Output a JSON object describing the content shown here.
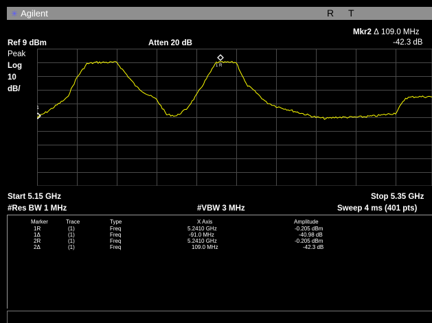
{
  "title": {
    "brand": "Agilent",
    "r": "R",
    "t": "T"
  },
  "marker_readout": {
    "label": "Mkr2",
    "delta_symbol": "Δ",
    "freq": "109.0 MHz",
    "amp": "-42.3 dB"
  },
  "header": {
    "ref": "Ref 9 dBm",
    "atten": "Atten 20 dB"
  },
  "scale": {
    "detector": "Peak",
    "mode": "Log",
    "value": "10",
    "unit": "dB/"
  },
  "footer": {
    "start": "Start 5.15 GHz",
    "stop": "Stop 5.35 GHz",
    "res_bw": "#Res BW 1 MHz",
    "vbw": "#VBW 3 MHz",
    "sweep": "Sweep 4 ms (401 pts)"
  },
  "marker_table": {
    "headers": [
      "Marker",
      "Trace",
      "Type",
      "X Axis",
      "Amplitude"
    ],
    "rows": [
      [
        "1R",
        "(1)",
        "Freq",
        "5.2410 GHz",
        "-0.205 dBm"
      ],
      [
        "1Δ",
        "(1)",
        "Freq",
        "-91.0 MHz",
        "-40.98 dB"
      ],
      [
        "2R",
        "(1)",
        "Freq",
        "5.2410 GHz",
        "-0.205 dBm"
      ],
      [
        "2Δ",
        "(1)",
        "Freq",
        "109.0 MHz",
        "-42.3 dB"
      ]
    ]
  },
  "markers_on_plot": {
    "m1": "1",
    "m2": "1 R"
  },
  "colors": {
    "trace": "#ffff00",
    "grid": "#4a4a4a",
    "background": "#000000",
    "titlebar": "#8f8f8f"
  },
  "chart_data": {
    "type": "line",
    "x_range_ghz": [
      5.15,
      5.35
    ],
    "y_range_dbm": [
      9,
      -91
    ],
    "y_div_db": 10,
    "grid": true,
    "series": [
      {
        "x_ghz": [
          5.15,
          5.155,
          5.16,
          5.165,
          5.17,
          5.175,
          5.18,
          5.19,
          5.2,
          5.205,
          5.21,
          5.215,
          5.22,
          5.225,
          5.23,
          5.235,
          5.24,
          5.25,
          5.255,
          5.26,
          5.265,
          5.27,
          5.28,
          5.29,
          5.295,
          5.3,
          5.31,
          5.32,
          5.33,
          5.335,
          5.34,
          5.35
        ],
        "y_dbm": [
          -41,
          -37,
          -32,
          -27,
          -12,
          -2,
          -1,
          -1,
          -19,
          -24,
          -28,
          -39,
          -40,
          -35,
          -25,
          -13,
          -1,
          -1,
          -17,
          -23,
          -30,
          -33,
          -37,
          -41,
          -42,
          -41,
          -41,
          -40,
          -38,
          -27,
          -26,
          -26
        ]
      }
    ]
  }
}
